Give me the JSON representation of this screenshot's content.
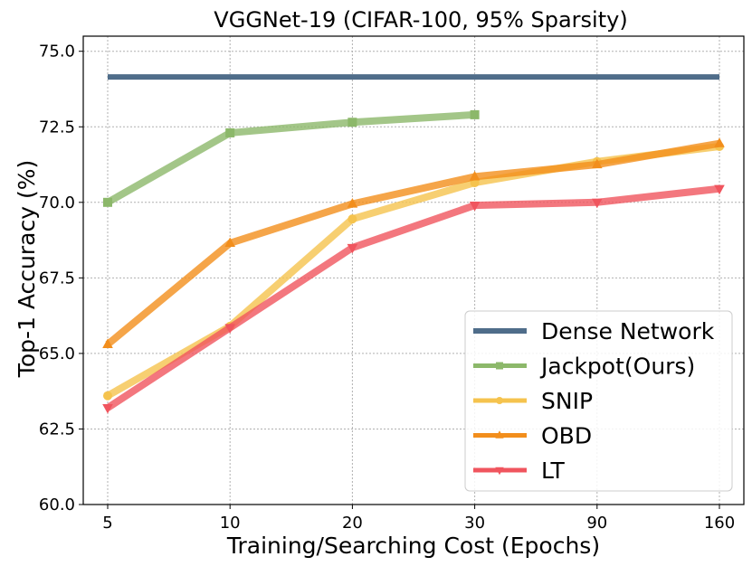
{
  "chart_data": {
    "type": "line",
    "title": "VGGNet-19 (CIFAR-100, 95% Sparsity)",
    "xlabel": "Training/Searching Cost (Epochs)",
    "ylabel": "Top-1 Accuracy (%)",
    "categories": [
      "5",
      "10",
      "20",
      "30",
      "90",
      "160"
    ],
    "ylim": [
      60.0,
      75.5
    ],
    "yticks": [
      "60.0",
      "62.5",
      "65.0",
      "67.5",
      "70.0",
      "72.5",
      "75.0"
    ],
    "grid": true,
    "legend_position": "bottom-right",
    "series": [
      {
        "name": "Dense Network",
        "color": "#4f6d8a",
        "marker": "none",
        "values": [
          74.15,
          74.15,
          74.15,
          74.15,
          74.15,
          74.15
        ]
      },
      {
        "name": "Jackpot(Ours)",
        "color": "#8cb86a",
        "marker": "square",
        "values": [
          70.0,
          72.3,
          72.65,
          72.9,
          null,
          null
        ]
      },
      {
        "name": "SNIP",
        "color": "#f5c34e",
        "marker": "circle",
        "values": [
          63.6,
          65.9,
          69.45,
          70.65,
          71.35,
          71.85
        ]
      },
      {
        "name": "OBD",
        "color": "#f28e1c",
        "marker": "triangle-up",
        "values": [
          65.3,
          68.65,
          69.95,
          70.85,
          71.25,
          71.95
        ]
      },
      {
        "name": "LT",
        "color": "#f0555e",
        "marker": "triangle-down",
        "values": [
          63.2,
          65.85,
          68.5,
          69.9,
          70.0,
          70.45
        ]
      }
    ]
  }
}
